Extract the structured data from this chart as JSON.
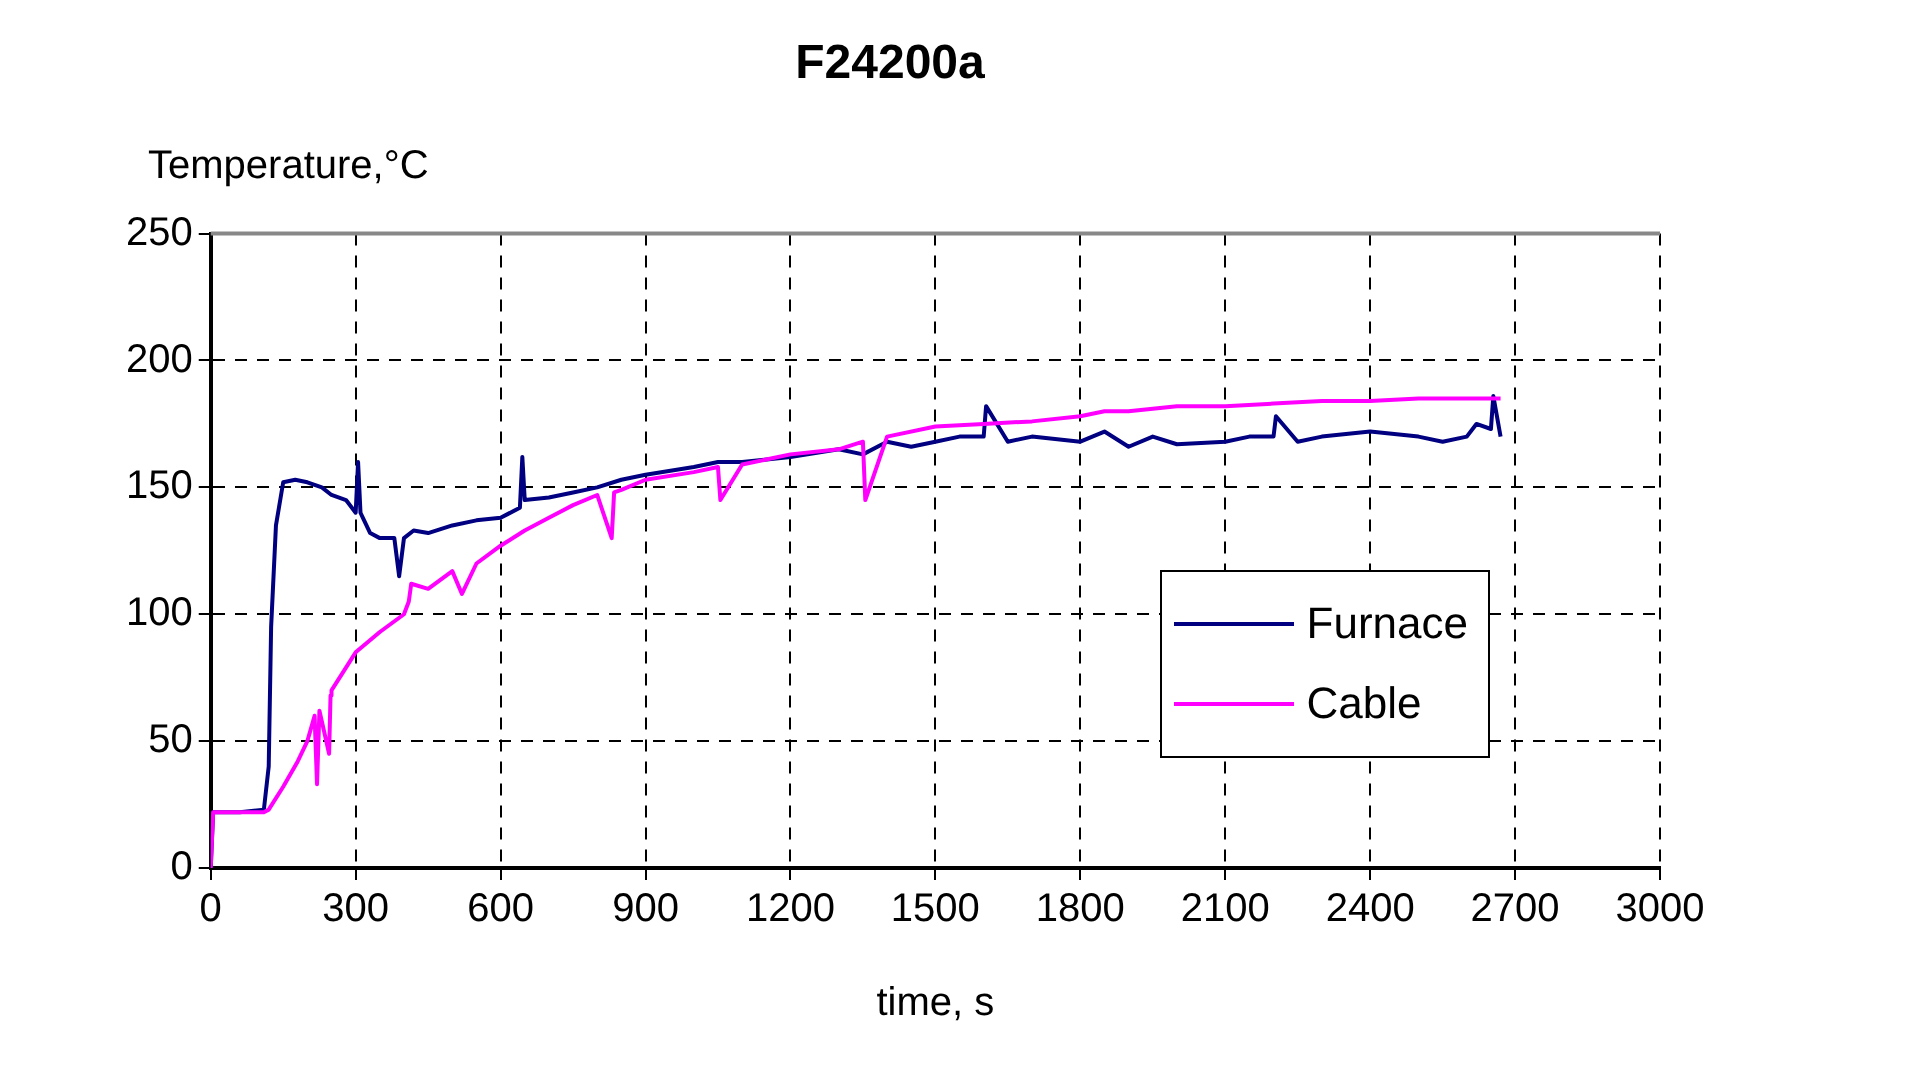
{
  "chart_data": {
    "type": "line",
    "title": "F24200a",
    "xlabel": "time, s",
    "ylabel": "Temperature,°C",
    "xlim": [
      0,
      3000
    ],
    "xticks": [
      0,
      300,
      600,
      900,
      1200,
      1500,
      1800,
      2100,
      2400,
      2700,
      3000
    ],
    "ylim": [
      0,
      250
    ],
    "yticks": [
      0,
      50,
      100,
      150,
      200,
      250
    ],
    "grid": true,
    "legend": "right",
    "marker": "none",
    "line_style": "solid",
    "series": [
      {
        "name": "Furnace",
        "color": "#000080",
        "x": [
          0,
          5,
          60,
          110,
          120,
          125,
          135,
          150,
          175,
          200,
          230,
          250,
          280,
          300,
          305,
          310,
          315,
          330,
          350,
          380,
          390,
          400,
          420,
          450,
          500,
          550,
          600,
          640,
          645,
          650,
          700,
          750,
          800,
          850,
          900,
          1000,
          1050,
          1100,
          1200,
          1300,
          1350,
          1400,
          1450,
          1500,
          1550,
          1600,
          1605,
          1650,
          1700,
          1800,
          1850,
          1900,
          1950,
          2000,
          2100,
          2150,
          2200,
          2205,
          2250,
          2300,
          2400,
          2500,
          2550,
          2600,
          2620,
          2650,
          2655,
          2670
        ],
        "values": [
          0,
          22,
          22,
          23,
          40,
          95,
          135,
          152,
          153,
          152,
          150,
          147,
          145,
          140,
          160,
          140,
          138,
          132,
          130,
          130,
          115,
          130,
          133,
          132,
          135,
          137,
          138,
          142,
          162,
          145,
          146,
          148,
          150,
          153,
          155,
          158,
          160,
          160,
          162,
          165,
          163,
          168,
          166,
          168,
          170,
          170,
          182,
          168,
          170,
          168,
          172,
          166,
          170,
          167,
          168,
          170,
          170,
          178,
          168,
          170,
          172,
          170,
          168,
          170,
          175,
          173,
          186,
          170
        ]
      },
      {
        "name": "Cable",
        "color": "#ff00ff",
        "x": [
          0,
          5,
          110,
          120,
          150,
          180,
          200,
          215,
          220,
          225,
          245,
          248,
          250,
          300,
          350,
          400,
          410,
          415,
          450,
          500,
          520,
          550,
          600,
          650,
          700,
          750,
          800,
          830,
          835,
          850,
          900,
          1000,
          1050,
          1055,
          1100,
          1200,
          1300,
          1350,
          1355,
          1400,
          1500,
          1600,
          1700,
          1800,
          1850,
          1900,
          2000,
          2100,
          2200,
          2300,
          2400,
          2500,
          2550,
          2600,
          2670
        ],
        "values": [
          0,
          22,
          22,
          23,
          32,
          42,
          50,
          60,
          33,
          62,
          45,
          68,
          70,
          85,
          93,
          100,
          105,
          112,
          110,
          117,
          108,
          120,
          127,
          133,
          138,
          143,
          147,
          130,
          148,
          149,
          153,
          156,
          158,
          145,
          159,
          163,
          165,
          168,
          145,
          170,
          174,
          175,
          176,
          178,
          180,
          180,
          182,
          182,
          183,
          184,
          184,
          185,
          185,
          185,
          185
        ]
      }
    ]
  }
}
